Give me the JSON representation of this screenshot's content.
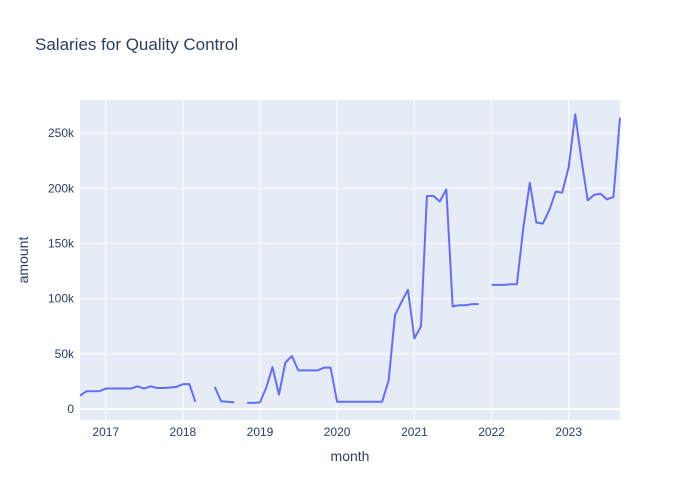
{
  "chart_data": {
    "type": "line",
    "title": "Salaries for Quality Control",
    "xlabel": "month",
    "ylabel": "amount",
    "xlim": [
      "2016-09-01",
      "2023-09-01"
    ],
    "ylim": [
      -10000,
      280000
    ],
    "x_ticks": [
      {
        "date": "2017-01-01",
        "label": "2017"
      },
      {
        "date": "2018-01-01",
        "label": "2018"
      },
      {
        "date": "2019-01-01",
        "label": "2019"
      },
      {
        "date": "2020-01-01",
        "label": "2020"
      },
      {
        "date": "2021-01-01",
        "label": "2021"
      },
      {
        "date": "2022-01-01",
        "label": "2022"
      },
      {
        "date": "2023-01-01",
        "label": "2023"
      }
    ],
    "y_ticks": [
      {
        "value": 0,
        "label": "0"
      },
      {
        "value": 50000,
        "label": "50k"
      },
      {
        "value": 100000,
        "label": "100k"
      },
      {
        "value": 150000,
        "label": "150k"
      },
      {
        "value": 200000,
        "label": "200k"
      },
      {
        "value": 250000,
        "label": "250k"
      }
    ],
    "grid": true,
    "line_color": "#636efa",
    "plot_bg": "#e5ecf6",
    "series": [
      {
        "x": [
          "2016-09-01",
          "2016-10-01",
          "2016-11-01",
          "2016-12-01",
          "2017-01-01",
          "2017-02-01",
          "2017-03-01",
          "2017-04-01",
          "2017-05-01",
          "2017-06-01",
          "2017-07-01",
          "2017-08-01",
          "2017-09-01",
          "2017-10-01",
          "2017-11-01",
          "2017-12-01",
          "2018-01-01",
          "2018-02-01",
          "2018-03-01",
          "2018-04-01",
          "2018-05-01",
          "2018-06-01",
          "2018-07-01",
          "2018-08-01",
          "2018-09-01",
          "2018-10-01",
          "2018-11-01",
          "2018-12-01",
          "2019-01-01",
          "2019-02-01",
          "2019-03-01",
          "2019-04-01",
          "2019-05-01",
          "2019-06-01",
          "2019-07-01",
          "2019-08-01",
          "2019-09-01",
          "2019-10-01",
          "2019-11-01",
          "2019-12-01",
          "2020-01-01",
          "2020-02-01",
          "2020-03-01",
          "2020-04-01",
          "2020-05-01",
          "2020-06-01",
          "2020-07-01",
          "2020-08-01",
          "2020-09-01",
          "2020-10-01",
          "2020-11-01",
          "2020-12-01",
          "2021-01-01",
          "2021-02-01",
          "2021-03-01",
          "2021-04-01",
          "2021-05-01",
          "2021-06-01",
          "2021-07-01",
          "2021-08-01",
          "2021-09-01",
          "2021-10-01",
          "2021-11-01",
          "2021-12-01",
          "2022-01-01",
          "2022-02-01",
          "2022-03-01",
          "2022-04-01",
          "2022-05-01",
          "2022-06-01",
          "2022-07-01",
          "2022-08-01",
          "2022-09-01",
          "2022-10-01",
          "2022-11-01",
          "2022-12-01",
          "2023-01-01",
          "2023-02-01",
          "2023-03-01",
          "2023-04-01",
          "2023-05-01",
          "2023-06-01",
          "2023-07-01",
          "2023-08-01",
          "2023-09-01"
        ],
        "y": [
          12000,
          16000,
          16000,
          16000,
          18500,
          18500,
          18500,
          18500,
          18500,
          20500,
          18500,
          20500,
          19000,
          19000,
          19500,
          20000,
          22500,
          22500,
          6500,
          null,
          null,
          20000,
          7000,
          6500,
          6000,
          null,
          5500,
          5500,
          6000,
          20000,
          38000,
          13000,
          42000,
          48000,
          35000,
          35000,
          35000,
          35000,
          37500,
          37500,
          6500,
          6500,
          6500,
          6500,
          6500,
          6500,
          6500,
          6500,
          26000,
          85000,
          97000,
          108000,
          64000,
          75000,
          193000,
          193000,
          188000,
          199000,
          93000,
          94000,
          94000,
          95000,
          95000,
          null,
          112500,
          112500,
          112500,
          113000,
          113000,
          165000,
          205000,
          169000,
          168000,
          180000,
          197000,
          196000,
          219000,
          267000,
          228000,
          189000,
          194000,
          195000,
          190000,
          192000,
          264000
        ]
      }
    ]
  }
}
